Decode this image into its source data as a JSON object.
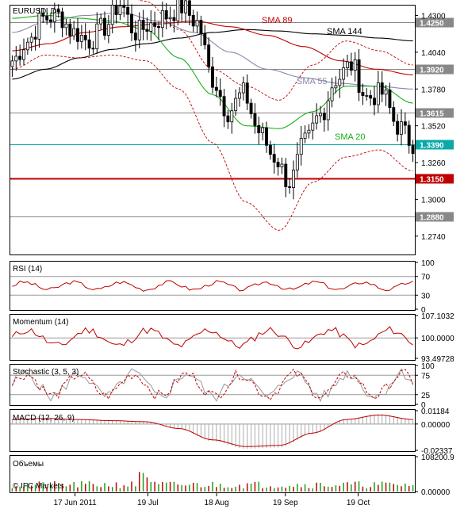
{
  "chart_data": {
    "type": "line",
    "symbol": "EURUSD, D1",
    "watermark": "© IFC Markets",
    "x_labels": [
      "17 Jun 2011",
      "19 Jul",
      "18 Aug",
      "19 Sep",
      "19 Oct"
    ],
    "price": {
      "ylim": [
        1.261,
        1.437
      ],
      "ticks": [
        1.43,
        1.404,
        1.378,
        1.352,
        1.326,
        1.3,
        1.274
      ],
      "tick_labels": [
        "1.4300",
        "1.4040",
        "1.3780",
        "1.3520",
        "1.3260",
        "1.3000",
        "1.2740"
      ],
      "levels": [
        {
          "label": "1.4250",
          "value": 1.425,
          "color": "#888888"
        },
        {
          "label": "1.3920",
          "value": 1.392,
          "color": "#888888"
        },
        {
          "label": "1.3615",
          "value": 1.3615,
          "color": "#888888"
        },
        {
          "label": "1.3390",
          "value": 1.339,
          "color": "#0aa8a8"
        },
        {
          "label": "1.3150",
          "value": 1.315,
          "color": "#c00000"
        },
        {
          "label": "1.2880",
          "value": 1.288,
          "color": "#888888"
        }
      ],
      "ma_labels": [
        {
          "name": "SMA 89",
          "color": "#c00000"
        },
        {
          "name": "SMA 144",
          "color": "#000000"
        },
        {
          "name": "SMA 55",
          "color": "#8888aa"
        },
        {
          "name": "SMA 20",
          "color": "#18b018"
        }
      ]
    },
    "rsi": {
      "title": "RSI (14)",
      "ticks": [
        "100",
        "70",
        "30",
        "0"
      ],
      "values": [
        100,
        70,
        30,
        0
      ]
    },
    "momentum": {
      "title": "Momentum (14)",
      "ticks": [
        "107.1032",
        "100.0000",
        "93.49728"
      ],
      "values": [
        107.1032,
        100.0,
        93.49728
      ]
    },
    "stochastic": {
      "title": "Stochastic (3, 5, 3)",
      "ticks": [
        "100",
        "75",
        "25",
        "0"
      ],
      "values": [
        100,
        75,
        25,
        0
      ]
    },
    "macd": {
      "title": "MACD (12, 26, 9)",
      "ticks": [
        "0.01184",
        "0.00000",
        "-0.02337"
      ],
      "values": [
        0.01184,
        0.0,
        -0.02337
      ]
    },
    "volume": {
      "title": "Объемы",
      "ticks": [
        "108200.9",
        "0.00000"
      ],
      "values": [
        108200.9,
        0
      ]
    }
  }
}
